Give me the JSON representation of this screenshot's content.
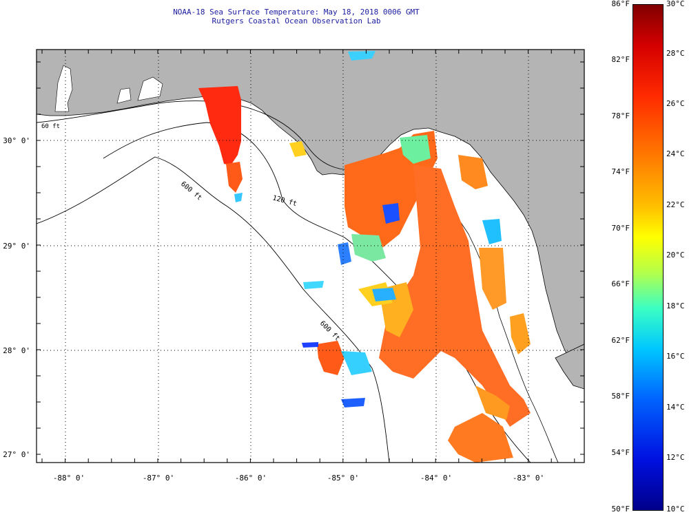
{
  "title": {
    "line1": "NOAA-18 Sea Surface Temperature:  May 18, 2018 0006 GMT",
    "line2": "Rutgers Coastal Ocean Observation Lab"
  },
  "map": {
    "lon_range": [
      -88.35,
      -82.4
    ],
    "lat_range": [
      26.98,
      30.85
    ],
    "lat_labels": [
      "30° 0'",
      "29° 0'",
      "28° 0'",
      "27° 0'"
    ],
    "lon_labels": [
      "-88° 0'",
      "-87° 0'",
      "-86° 0'",
      "-85° 0'",
      "-84° 0'",
      "-83° 0'"
    ],
    "contour_labels": [
      "60 ft",
      "120 ft",
      "600 ft",
      "600 ft"
    ],
    "land_color": "#b4b4b4",
    "water_color": "#ffffff"
  },
  "colorbar": {
    "fahrenheit_labels": [
      "86°F",
      "82°F",
      "78°F",
      "74°F",
      "70°F",
      "66°F",
      "62°F",
      "58°F",
      "54°F",
      "50°F"
    ],
    "celsius_labels": [
      "30°C",
      "28°C",
      "26°C",
      "24°C",
      "22°C",
      "20°C",
      "18°C",
      "16°C",
      "14°C",
      "12°C",
      "10°C"
    ],
    "range_celsius": [
      10,
      30
    ]
  }
}
